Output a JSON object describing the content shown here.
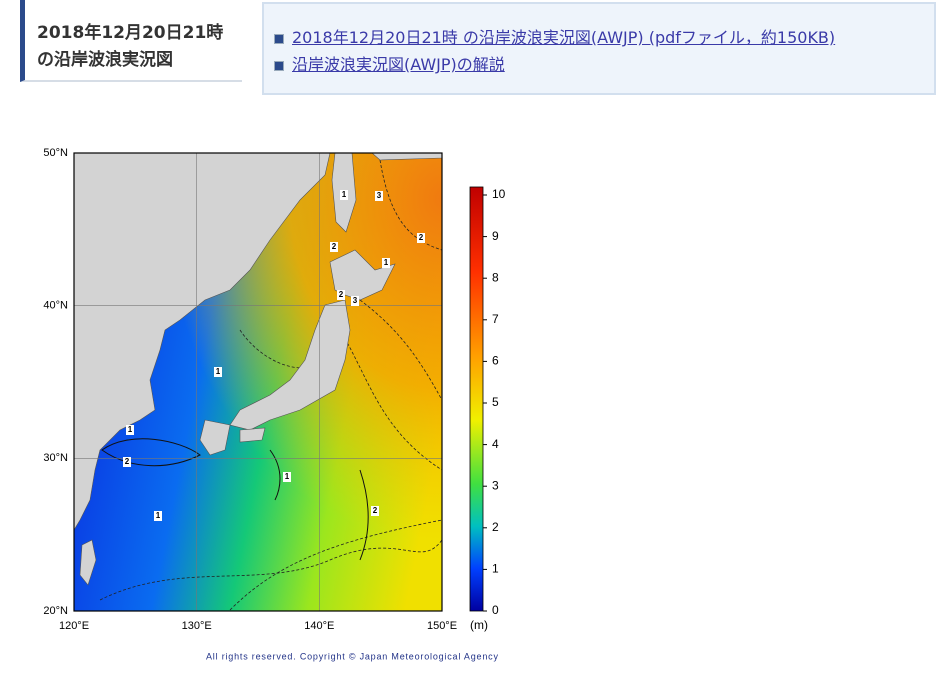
{
  "header": {
    "title_lines": [
      "2018年12月20日21時",
      "の沿岸波浪実況図"
    ]
  },
  "links": [
    "2018年12月20日21時 の沿岸波浪実況図(AWJP) (pdfファイル，約150KB)",
    "沿岸波浪実況図(AWJP)の解説"
  ],
  "map": {
    "lat_labels": [
      "50°N",
      "40°N",
      "30°N",
      "20°N"
    ],
    "lon_labels": [
      "120°E",
      "130°E",
      "140°E",
      "150°E"
    ],
    "colorbar": {
      "range": [
        0,
        10
      ],
      "ticks": [
        0,
        1,
        2,
        3,
        4,
        5,
        6,
        7,
        8,
        9,
        10
      ],
      "unit": "(m)"
    },
    "contour_labels": [
      "1",
      "2",
      "1",
      "1",
      "1",
      "2",
      "2",
      "1",
      "2",
      "3",
      "3",
      "1",
      "2"
    ],
    "copyright": "All rights reserved. Copyright © Japan Meteorological Agency"
  }
}
